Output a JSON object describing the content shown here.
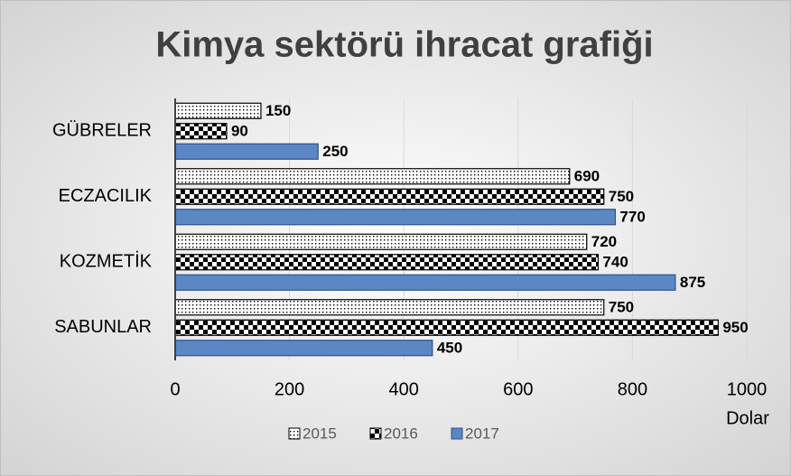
{
  "chart_data": {
    "type": "hbar",
    "title": "Kimya sektörü ihracat grafiği",
    "categories": [
      "GÜBRELER",
      "ECZACILIK",
      "KOZMETİK",
      "SABUNLAR"
    ],
    "series": [
      {
        "name": "2015",
        "color": "#000000",
        "pattern": "dots",
        "values": [
          150,
          690,
          720,
          750
        ]
      },
      {
        "name": "2016",
        "color": "#000000",
        "pattern": "checker",
        "values": [
          90,
          750,
          740,
          950
        ]
      },
      {
        "name": "2017",
        "color": "#5b87c5",
        "pattern": null,
        "values": [
          250,
          770,
          875,
          450
        ]
      }
    ],
    "x_label": "Dolar",
    "xlim": [
      0,
      1000
    ],
    "xticks": [
      0,
      200,
      400,
      600,
      800,
      1000
    ],
    "grid": true,
    "legend": "bottom"
  }
}
